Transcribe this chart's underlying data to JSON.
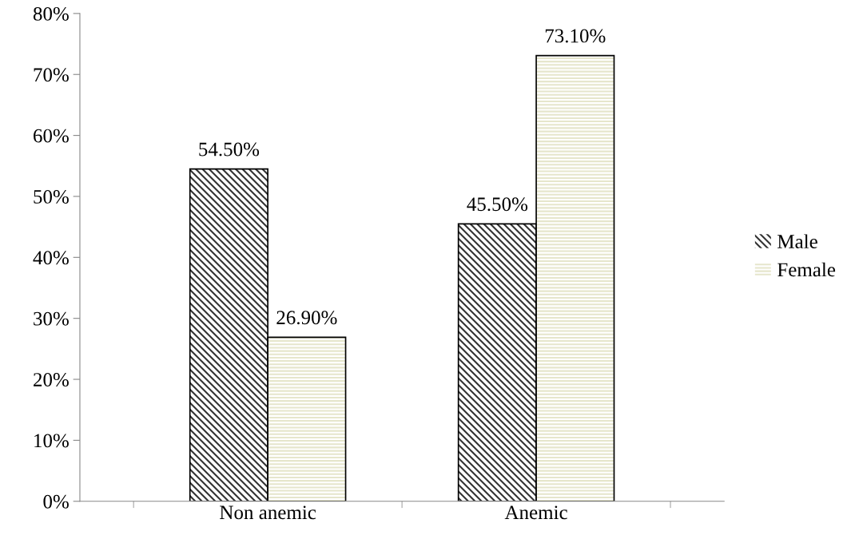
{
  "chart_data": {
    "type": "bar",
    "categories": [
      "Non anemic",
      "Anemic"
    ],
    "series": [
      {
        "name": "Male",
        "color": "#333333",
        "values": [
          54.5,
          45.5
        ],
        "value_labels": [
          "54.50%",
          "45.50%"
        ]
      },
      {
        "name": "Female",
        "color": "#e6e6cc",
        "values": [
          26.9,
          73.1
        ],
        "value_labels": [
          "26.90%",
          "73.10%"
        ]
      }
    ],
    "ylim": [
      0,
      80
    ],
    "yticks": [
      {
        "value": 0,
        "label": "0%"
      },
      {
        "value": 10,
        "label": "10%"
      },
      {
        "value": 20,
        "label": "20%"
      },
      {
        "value": 30,
        "label": "30%"
      },
      {
        "value": 40,
        "label": "40%"
      },
      {
        "value": 50,
        "label": "50%"
      },
      {
        "value": 60,
        "label": "60%"
      },
      {
        "value": 70,
        "label": "70%"
      },
      {
        "value": 80,
        "label": "80%"
      }
    ],
    "grid": false,
    "legend": "right"
  }
}
